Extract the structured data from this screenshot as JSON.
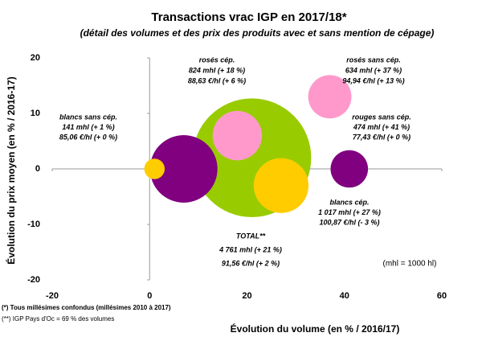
{
  "chart_data": {
    "type": "bubble",
    "title": "Transactions vrac IGP en 2017/18*",
    "subtitle": "(détail des volumes et des prix des produits avec et sans mention de cépage)",
    "xlabel": "Évolution du volume (en % / 2016/17)",
    "ylabel": "Évolution du prix moyen (en % / 2016-17)",
    "xlim": [
      -20,
      60
    ],
    "xticks": [
      -20,
      0,
      20,
      40,
      60
    ],
    "ylim": [
      -20,
      20
    ],
    "yticks": [
      -20,
      -10,
      0,
      10,
      20
    ],
    "points": [
      {
        "x": 21,
        "y": 2,
        "size": 4761,
        "color": "#99cc00"
      },
      {
        "x": 7,
        "y": 0,
        "size": 1540,
        "color": "#800080"
      },
      {
        "x": 18,
        "y": 6,
        "size": 824,
        "color": "#ff99cc"
      },
      {
        "x": 37,
        "y": 13,
        "size": 634,
        "color": "#ff99cc"
      },
      {
        "x": 41,
        "y": 0,
        "size": 474,
        "color": "#800080"
      },
      {
        "x": 27,
        "y": -3,
        "size": 1017,
        "color": "#ffcc00"
      },
      {
        "x": 1,
        "y": 0,
        "size": 141,
        "color": "#ffcc00"
      }
    ],
    "annotations": [
      {
        "lines": [
          "rosés cép.",
          "824 mhl (+ 18 %)",
          "88,63 €/hl (+ 6 %)"
        ]
      },
      {
        "lines": [
          "rosés sans cép.",
          "634 mhl (+ 37 %)",
          "94,94 €/hl (+ 13 %)"
        ]
      },
      {
        "lines": [
          "blancs sans cép.",
          "141 mhl (+ 1 %)",
          "85,06 €/hl (+ 0 %)"
        ]
      },
      {
        "lines": [
          "rouges sans cép.",
          "474 mhl (+ 41 %)",
          "77,43 €/hl (+ 0 %)"
        ]
      },
      {
        "lines": [
          "blancs cép.",
          "1 017 mhl (+ 27 %)",
          "100,87 €/hl (- 3 %)"
        ]
      },
      {
        "lines": [
          "TOTAL**",
          "4 761 mhl (+ 21 %)",
          "91,56 €/hl (+ 2 %)"
        ]
      }
    ],
    "unit_note": "(mhl = 1000 hl)",
    "footnotes": [
      "(*) Tous millésimes confondus (millésimes 2010 à 2017)",
      "(**) IGP Pays d'Oc = 69 % des volumes"
    ]
  }
}
